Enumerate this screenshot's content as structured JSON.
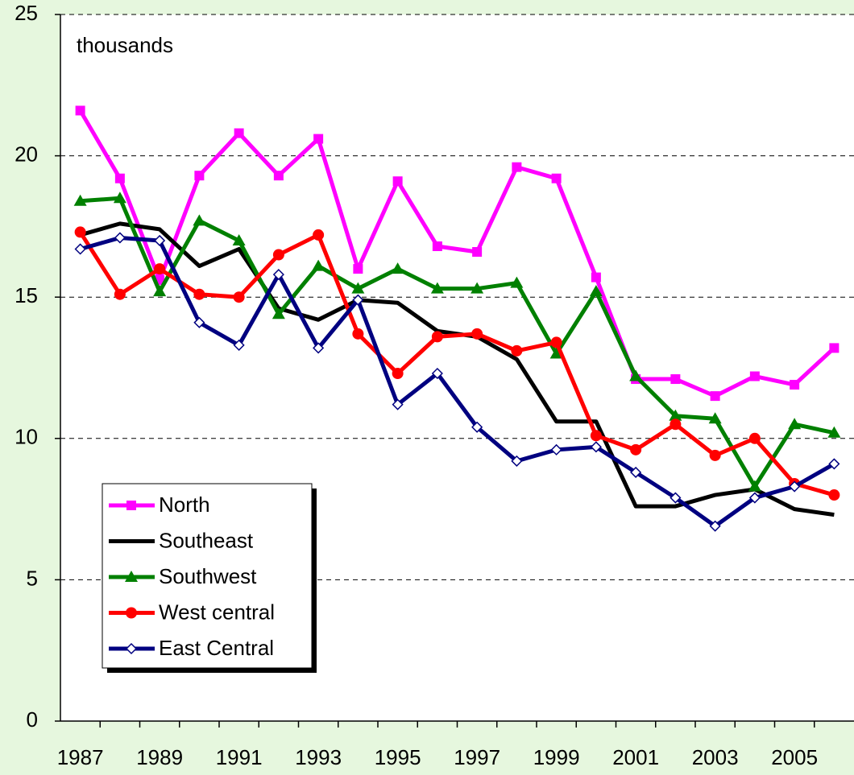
{
  "chart_data": {
    "type": "line",
    "annotation": "thousands",
    "categories": [
      "1987",
      null,
      "1989",
      null,
      "1991",
      null,
      "1993",
      null,
      "1995",
      null,
      "1997",
      null,
      "1999",
      null,
      "2001",
      null,
      "2003",
      null,
      "2005",
      null
    ],
    "ylim": [
      0,
      25
    ],
    "yticks": [
      0,
      5,
      10,
      15,
      20,
      25
    ],
    "grid": true,
    "legend": "lower left",
    "series": [
      {
        "name": "North",
        "color": "#ff00ff",
        "marker": "square",
        "values": [
          21.6,
          19.2,
          15.6,
          19.3,
          20.8,
          19.3,
          20.6,
          16.0,
          19.1,
          16.8,
          16.6,
          19.6,
          19.2,
          15.7,
          12.1,
          12.1,
          11.5,
          12.2,
          11.9,
          13.2
        ]
      },
      {
        "name": "Southeast",
        "color": "#000000",
        "marker": "none",
        "values": [
          17.2,
          17.6,
          17.4,
          16.1,
          16.7,
          14.6,
          14.2,
          14.9,
          14.8,
          13.8,
          13.6,
          12.8,
          10.6,
          10.6,
          7.6,
          7.6,
          8.0,
          8.2,
          7.5,
          7.3
        ]
      },
      {
        "name": "Southwest",
        "color": "#008000",
        "marker": "triangle",
        "values": [
          18.4,
          18.5,
          15.2,
          17.7,
          17.0,
          14.4,
          16.1,
          15.3,
          16.0,
          15.3,
          15.3,
          15.5,
          13.0,
          15.2,
          12.2,
          10.8,
          10.7,
          8.3,
          10.5,
          10.2
        ]
      },
      {
        "name": "West central",
        "color": "#ff0000",
        "marker": "circle",
        "values": [
          17.3,
          15.1,
          16.0,
          15.1,
          15.0,
          16.5,
          17.2,
          13.7,
          12.3,
          13.6,
          13.7,
          13.1,
          13.4,
          10.1,
          9.6,
          10.5,
          9.4,
          10.0,
          8.4,
          8.0
        ]
      },
      {
        "name": "East Central",
        "color": "#000080",
        "marker": "diamond",
        "values": [
          16.7,
          17.1,
          17.0,
          14.1,
          13.3,
          15.8,
          13.2,
          14.9,
          11.2,
          12.3,
          10.4,
          9.2,
          9.6,
          9.7,
          8.8,
          7.9,
          6.9,
          7.9,
          8.3,
          9.1
        ]
      }
    ]
  }
}
